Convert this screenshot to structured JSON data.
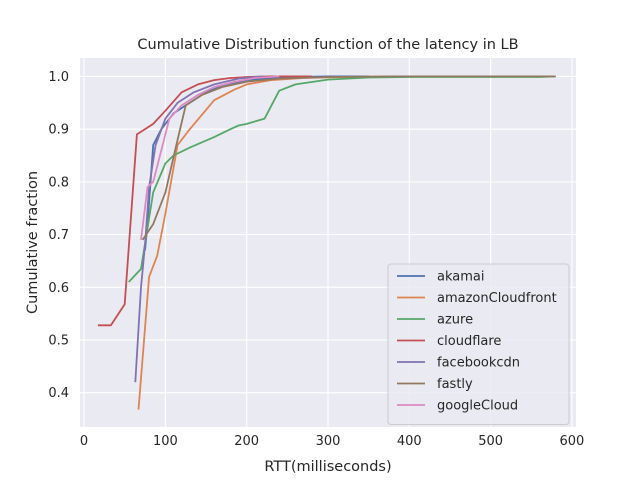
{
  "chart_data": {
    "type": "line",
    "title": "Cumulative Distribution function of the latency in LB",
    "xlabel": "RTT(milliseconds)",
    "ylabel": "Cumulative fraction",
    "xlim": [
      -5,
      605
    ],
    "ylim": [
      0.335,
      1.035
    ],
    "xticks": [
      0,
      100,
      200,
      300,
      400,
      500,
      600
    ],
    "yticks": [
      0.4,
      0.5,
      0.6,
      0.7,
      0.8,
      0.9,
      1.0
    ],
    "xtick_labels": [
      "0",
      "100",
      "200",
      "300",
      "400",
      "500",
      "600"
    ],
    "ytick_labels": [
      "0.4",
      "0.5",
      "0.6",
      "0.7",
      "0.8",
      "0.9",
      "1.0"
    ],
    "grid": true,
    "legend_position": "lower-right",
    "series": [
      {
        "name": "akamai",
        "color": "#4c72b0",
        "x": [
          75,
          78,
          85,
          95,
          110,
          130,
          150,
          175,
          200,
          230,
          260,
          300,
          350
        ],
        "y": [
          0.67,
          0.72,
          0.87,
          0.9,
          0.93,
          0.95,
          0.97,
          0.985,
          0.993,
          0.997,
          0.999,
          1.0,
          1.0
        ]
      },
      {
        "name": "amazonCloudfront",
        "color": "#dd8452",
        "x": [
          67,
          80,
          90,
          100,
          115,
          130,
          160,
          185,
          200,
          230,
          270,
          320,
          380
        ],
        "y": [
          0.368,
          0.62,
          0.66,
          0.74,
          0.87,
          0.9,
          0.955,
          0.975,
          0.985,
          0.993,
          0.997,
          0.999,
          1.0
        ]
      },
      {
        "name": "azure",
        "color": "#55a868",
        "x": [
          55,
          70,
          85,
          100,
          110,
          130,
          160,
          180,
          190,
          200,
          222,
          240,
          260,
          300,
          350,
          400,
          560,
          580
        ],
        "y": [
          0.61,
          0.635,
          0.78,
          0.835,
          0.85,
          0.865,
          0.885,
          0.9,
          0.907,
          0.91,
          0.92,
          0.973,
          0.985,
          0.994,
          0.998,
          0.999,
          0.999,
          1.0
        ]
      },
      {
        "name": "cloudflare",
        "color": "#c44e52",
        "x": [
          17,
          33,
          50,
          65,
          85,
          100,
          120,
          140,
          160,
          180,
          200,
          230,
          280
        ],
        "y": [
          0.528,
          0.528,
          0.568,
          0.89,
          0.91,
          0.935,
          0.97,
          0.985,
          0.993,
          0.997,
          0.999,
          1.0,
          1.0
        ]
      },
      {
        "name": "facebookcdn",
        "color": "#8172b3",
        "x": [
          63,
          70,
          75,
          80,
          88,
          100,
          115,
          135,
          160,
          190,
          220
        ],
        "y": [
          0.42,
          0.6,
          0.68,
          0.79,
          0.87,
          0.92,
          0.95,
          0.97,
          0.985,
          0.996,
          1.0
        ]
      },
      {
        "name": "fastly",
        "color": "#937860",
        "x": [
          72,
          85,
          100,
          112,
          125,
          145,
          170,
          200,
          240,
          300,
          380,
          500,
          580
        ],
        "y": [
          0.69,
          0.72,
          0.78,
          0.86,
          0.945,
          0.965,
          0.98,
          0.99,
          0.996,
          0.999,
          1.0,
          1.0,
          1.0
        ]
      },
      {
        "name": "googleCloud",
        "color": "#da8bc3",
        "x": [
          70,
          78,
          85,
          95,
          105,
          120,
          140,
          160,
          185,
          210,
          240
        ],
        "y": [
          0.69,
          0.79,
          0.8,
          0.86,
          0.92,
          0.945,
          0.965,
          0.98,
          0.99,
          0.997,
          1.0
        ]
      }
    ]
  }
}
